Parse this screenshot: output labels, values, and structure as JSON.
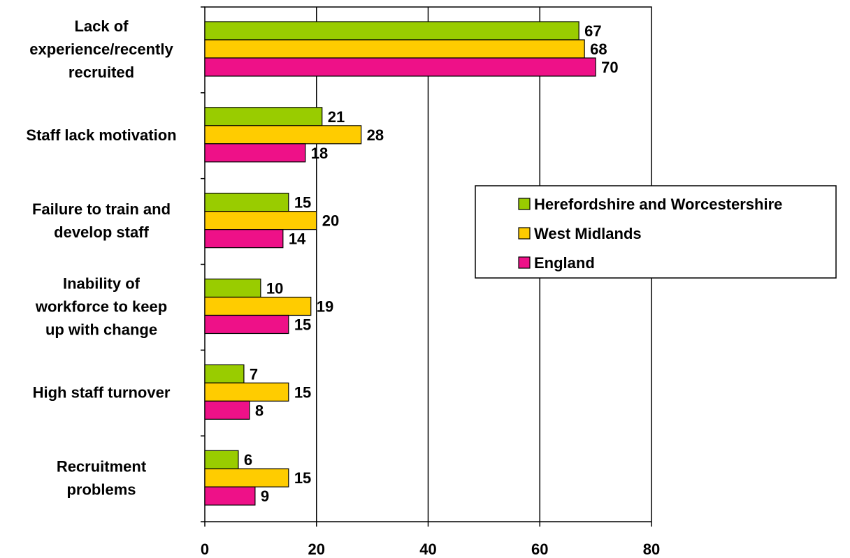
{
  "chart_data": {
    "type": "bar",
    "orientation": "horizontal",
    "categories": [
      "Lack of experience/recently recruited",
      "Staff lack motivation",
      "Failure to train and develop staff",
      "Inability of workforce to keep up with change",
      "High staff turnover",
      "Recruitment problems"
    ],
    "category_lines": [
      [
        "Lack of",
        "experience/recently",
        "recruited"
      ],
      [
        "Staff lack motivation"
      ],
      [
        "Failure to train and",
        "develop staff"
      ],
      [
        "Inability of",
        "workforce to keep",
        "up with change"
      ],
      [
        "High staff turnover"
      ],
      [
        "Recruitment",
        "problems"
      ]
    ],
    "series": [
      {
        "name": "Herefordshire and Worcestershire",
        "color": "#99cc00",
        "values": [
          67,
          21,
          15,
          10,
          7,
          6
        ]
      },
      {
        "name": "West Midlands",
        "color": "#ffcc00",
        "values": [
          68,
          28,
          20,
          19,
          15,
          15
        ]
      },
      {
        "name": "England",
        "color": "#ee1188",
        "values": [
          70,
          18,
          14,
          15,
          8,
          9
        ]
      }
    ],
    "xlim": [
      0,
      80
    ],
    "xticks": [
      0,
      20,
      40,
      60,
      80
    ],
    "grid": "vertical",
    "legend_position": "right"
  }
}
